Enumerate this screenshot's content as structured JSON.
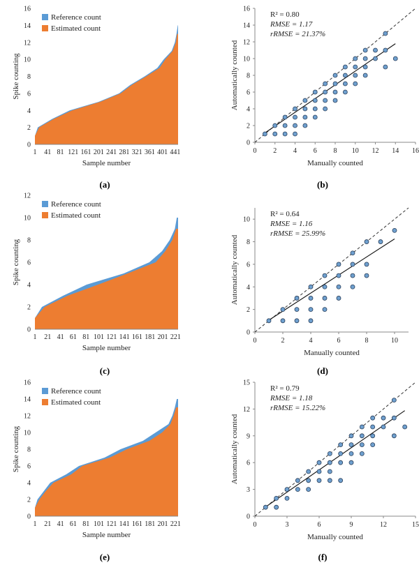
{
  "colors": {
    "reference": "#5b9bd5",
    "estimated": "#ed7d31",
    "point_fill": "#6fa0cf",
    "point_stroke": "#2a3f5a",
    "axis": "#888888",
    "text": "#222222"
  },
  "chart_data": [
    {
      "type": "area",
      "panel_label": "(a)",
      "xlabel": "Sample number",
      "ylabel": "Spike counting",
      "ylim": [
        0,
        16
      ],
      "yticks": [
        0,
        2,
        4,
        6,
        8,
        10,
        12,
        14,
        16
      ],
      "xtick_labels": [
        "1",
        "41",
        "81",
        "121",
        "161",
        "201",
        "241",
        "281",
        "321",
        "361",
        "401",
        "441"
      ],
      "n_samples": 450,
      "legend": [
        "Reference count",
        "Estimated count"
      ],
      "reference_steps": [
        [
          1,
          1
        ],
        [
          10,
          2
        ],
        [
          35,
          2
        ],
        [
          55,
          3
        ],
        [
          110,
          4
        ],
        [
          140,
          4
        ],
        [
          200,
          5
        ],
        [
          210,
          5
        ],
        [
          265,
          6
        ],
        [
          300,
          7
        ],
        [
          345,
          8
        ],
        [
          385,
          9
        ],
        [
          405,
          10
        ],
        [
          430,
          11
        ],
        [
          440,
          12
        ],
        [
          445,
          13
        ],
        [
          449,
          14
        ],
        [
          450,
          14
        ]
      ],
      "estimated_steps": [
        [
          1,
          1
        ],
        [
          14,
          2
        ],
        [
          38,
          2
        ],
        [
          60,
          3
        ],
        [
          118,
          4
        ],
        [
          175,
          4
        ],
        [
          205,
          5
        ],
        [
          215,
          5
        ],
        [
          270,
          6
        ],
        [
          305,
          7
        ],
        [
          350,
          8
        ],
        [
          392,
          9
        ],
        [
          410,
          10
        ],
        [
          433,
          11
        ],
        [
          443,
          12
        ],
        [
          447,
          13
        ],
        [
          450,
          13
        ]
      ]
    },
    {
      "type": "scatter",
      "panel_label": "(b)",
      "xlabel": "Manually counted",
      "ylabel": "Automatically counted",
      "xlim": [
        0,
        16
      ],
      "ylim": [
        0,
        16
      ],
      "xticks": [
        0,
        2,
        4,
        6,
        8,
        10,
        12,
        14,
        16
      ],
      "yticks": [
        0,
        2,
        4,
        6,
        8,
        10,
        12,
        14,
        16
      ],
      "r2": "R² = 0.80",
      "rmse": "RMSE = 1.17",
      "rrmse": "rRMSE = 21.37%",
      "fit_line": {
        "slope": 0.82,
        "intercept": 0.3,
        "x_range": [
          1,
          14
        ]
      },
      "points": [
        [
          1,
          1
        ],
        [
          2,
          1
        ],
        [
          2,
          2
        ],
        [
          3,
          1
        ],
        [
          3,
          2
        ],
        [
          3,
          3
        ],
        [
          4,
          1
        ],
        [
          4,
          2
        ],
        [
          4,
          3
        ],
        [
          4,
          4
        ],
        [
          5,
          2
        ],
        [
          5,
          3
        ],
        [
          5,
          4
        ],
        [
          5,
          5
        ],
        [
          6,
          3
        ],
        [
          6,
          4
        ],
        [
          6,
          5
        ],
        [
          6,
          6
        ],
        [
          7,
          4
        ],
        [
          7,
          5
        ],
        [
          7,
          6
        ],
        [
          7,
          7
        ],
        [
          8,
          5
        ],
        [
          8,
          6
        ],
        [
          8,
          7
        ],
        [
          8,
          8
        ],
        [
          9,
          6
        ],
        [
          9,
          7
        ],
        [
          9,
          8
        ],
        [
          9,
          9
        ],
        [
          10,
          7
        ],
        [
          10,
          8
        ],
        [
          10,
          9
        ],
        [
          10,
          10
        ],
        [
          11,
          8
        ],
        [
          11,
          9
        ],
        [
          11,
          10
        ],
        [
          11,
          11
        ],
        [
          12,
          10
        ],
        [
          12,
          11
        ],
        [
          13,
          9
        ],
        [
          13,
          11
        ],
        [
          13,
          13
        ],
        [
          14,
          10
        ]
      ]
    },
    {
      "type": "area",
      "panel_label": "(c)",
      "xlabel": "Sample number",
      "ylabel": "Spike counting",
      "ylim": [
        0,
        12
      ],
      "yticks": [
        0,
        2,
        4,
        6,
        8,
        10,
        12
      ],
      "xtick_labels": [
        "1",
        "21",
        "41",
        "61",
        "81",
        "101",
        "121",
        "141",
        "161",
        "181",
        "201",
        "221"
      ],
      "n_samples": 225,
      "legend": [
        "Reference count",
        "Estimated count"
      ],
      "reference_steps": [
        [
          1,
          1
        ],
        [
          12,
          2
        ],
        [
          45,
          3
        ],
        [
          82,
          4
        ],
        [
          140,
          5
        ],
        [
          180,
          6
        ],
        [
          200,
          7
        ],
        [
          212,
          8
        ],
        [
          220,
          9
        ],
        [
          223,
          10
        ],
        [
          225,
          10
        ]
      ],
      "estimated_steps": [
        [
          1,
          1
        ],
        [
          16,
          2
        ],
        [
          52,
          3
        ],
        [
          100,
          4
        ],
        [
          146,
          5
        ],
        [
          190,
          6
        ],
        [
          205,
          7
        ],
        [
          216,
          8
        ],
        [
          222,
          9
        ],
        [
          225,
          9
        ]
      ]
    },
    {
      "type": "scatter",
      "panel_label": "(d)",
      "xlabel": "Manually counted",
      "ylabel": "Automatically counted",
      "xlim": [
        0,
        11
      ],
      "ylim": [
        0,
        11
      ],
      "xticks": [
        0,
        2,
        4,
        6,
        8,
        10
      ],
      "yticks": [
        0,
        2,
        4,
        6,
        8,
        10
      ],
      "r2": "R² = 0.64",
      "rmse": "RMSE = 1.16",
      "rrmse": "rRMSE = 25.99%",
      "fit_line": {
        "slope": 0.8,
        "intercept": 0.25,
        "x_range": [
          1,
          10
        ]
      },
      "points": [
        [
          1,
          1
        ],
        [
          2,
          1
        ],
        [
          2,
          2
        ],
        [
          3,
          1
        ],
        [
          3,
          2
        ],
        [
          3,
          3
        ],
        [
          4,
          1
        ],
        [
          4,
          2
        ],
        [
          4,
          3
        ],
        [
          4,
          4
        ],
        [
          5,
          2
        ],
        [
          5,
          3
        ],
        [
          5,
          4
        ],
        [
          5,
          5
        ],
        [
          6,
          3
        ],
        [
          6,
          4
        ],
        [
          6,
          5
        ],
        [
          6,
          6
        ],
        [
          7,
          4
        ],
        [
          7,
          5
        ],
        [
          7,
          6
        ],
        [
          7,
          7
        ],
        [
          8,
          5
        ],
        [
          8,
          6
        ],
        [
          8,
          8
        ],
        [
          9,
          8
        ],
        [
          10,
          9
        ]
      ]
    },
    {
      "type": "area",
      "panel_label": "(e)",
      "xlabel": "Sample number",
      "ylabel": "Spike counting",
      "ylim": [
        0,
        16
      ],
      "yticks": [
        0,
        2,
        4,
        6,
        8,
        10,
        12,
        14,
        16
      ],
      "xtick_labels": [
        "1",
        "21",
        "41",
        "61",
        "81",
        "101",
        "121",
        "141",
        "161",
        "181",
        "201",
        "221"
      ],
      "n_samples": 225,
      "legend": [
        "Reference count",
        "Estimated count"
      ],
      "reference_steps": [
        [
          1,
          1
        ],
        [
          5,
          2
        ],
        [
          15,
          3
        ],
        [
          25,
          4
        ],
        [
          50,
          5
        ],
        [
          70,
          6
        ],
        [
          85,
          6
        ],
        [
          95,
          6
        ],
        [
          110,
          7
        ],
        [
          135,
          8
        ],
        [
          155,
          8
        ],
        [
          170,
          9
        ],
        [
          190,
          10
        ],
        [
          210,
          11
        ],
        [
          216,
          12
        ],
        [
          220,
          13
        ],
        [
          223,
          14
        ],
        [
          225,
          14
        ]
      ],
      "estimated_steps": [
        [
          1,
          1
        ],
        [
          8,
          2
        ],
        [
          18,
          3
        ],
        [
          30,
          4
        ],
        [
          58,
          5
        ],
        [
          75,
          6
        ],
        [
          100,
          6
        ],
        [
          118,
          7
        ],
        [
          145,
          8
        ],
        [
          162,
          8
        ],
        [
          180,
          9
        ],
        [
          200,
          10
        ],
        [
          213,
          11
        ],
        [
          218,
          12
        ],
        [
          222,
          13
        ],
        [
          225,
          13
        ]
      ]
    },
    {
      "type": "scatter",
      "panel_label": "(f)",
      "xlabel": "Manually counted",
      "ylabel": "Automatically counted",
      "xlim": [
        0,
        15
      ],
      "ylim": [
        0,
        15
      ],
      "xticks": [
        0,
        3,
        6,
        9,
        12,
        15
      ],
      "yticks": [
        0,
        3,
        6,
        9,
        12,
        15
      ],
      "r2": "R² = 0.79",
      "rmse": "RMSE = 1.18",
      "rrmse": "rRMSE = 15.22%",
      "fit_line": {
        "slope": 0.83,
        "intercept": 0.2,
        "x_range": [
          1,
          14
        ]
      },
      "points": [
        [
          1,
          1
        ],
        [
          2,
          1
        ],
        [
          2,
          2
        ],
        [
          3,
          2
        ],
        [
          3,
          3
        ],
        [
          4,
          3
        ],
        [
          4,
          4
        ],
        [
          5,
          3
        ],
        [
          5,
          4
        ],
        [
          5,
          5
        ],
        [
          6,
          4
        ],
        [
          6,
          5
        ],
        [
          6,
          6
        ],
        [
          7,
          4
        ],
        [
          7,
          5
        ],
        [
          7,
          6
        ],
        [
          7,
          7
        ],
        [
          8,
          4
        ],
        [
          8,
          6
        ],
        [
          8,
          7
        ],
        [
          8,
          8
        ],
        [
          9,
          6
        ],
        [
          9,
          7
        ],
        [
          9,
          8
        ],
        [
          9,
          9
        ],
        [
          10,
          7
        ],
        [
          10,
          8
        ],
        [
          10,
          9
        ],
        [
          10,
          10
        ],
        [
          11,
          8
        ],
        [
          11,
          9
        ],
        [
          11,
          10
        ],
        [
          11,
          11
        ],
        [
          12,
          10
        ],
        [
          12,
          11
        ],
        [
          13,
          9
        ],
        [
          13,
          11
        ],
        [
          13,
          13
        ],
        [
          14,
          10
        ]
      ]
    }
  ]
}
